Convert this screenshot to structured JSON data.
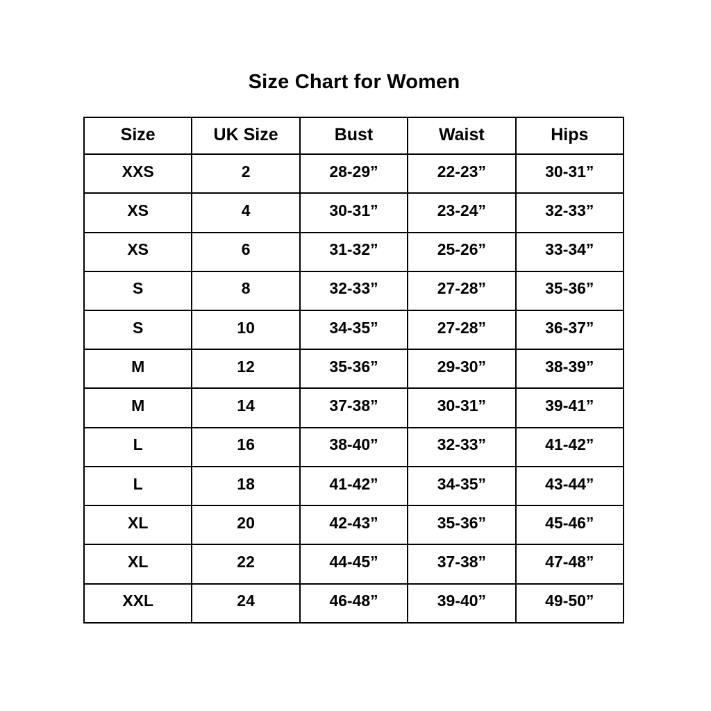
{
  "title": "Size Chart for Women",
  "colors": {
    "background": "#ffffff",
    "border": "#000000",
    "text": "#000000"
  },
  "chart_data": {
    "type": "table",
    "title": "Size Chart for Women",
    "columns": [
      "Size",
      "UK Size",
      "Bust",
      "Waist",
      "Hips"
    ],
    "rows": [
      [
        "XXS",
        "2",
        "28-29”",
        "22-23”",
        "30-31”"
      ],
      [
        "XS",
        "4",
        "30-31”",
        "23-24”",
        "32-33”"
      ],
      [
        "XS",
        "6",
        "31-32”",
        "25-26”",
        "33-34”"
      ],
      [
        "S",
        "8",
        "32-33”",
        "27-28”",
        "35-36”"
      ],
      [
        "S",
        "10",
        "34-35”",
        "27-28”",
        "36-37”"
      ],
      [
        "M",
        "12",
        "35-36”",
        "29-30”",
        "38-39”"
      ],
      [
        "M",
        "14",
        "37-38”",
        "30-31”",
        "39-41”"
      ],
      [
        "L",
        "16",
        "38-40”",
        "32-33”",
        "41-42”"
      ],
      [
        "L",
        "18",
        "41-42”",
        "34-35”",
        "43-44”"
      ],
      [
        "XL",
        "20",
        "42-43”",
        "35-36”",
        "45-46”"
      ],
      [
        "XL",
        "22",
        "44-45”",
        "37-38”",
        "47-48”"
      ],
      [
        "XXL",
        "24",
        "46-48”",
        "39-40”",
        "49-50”"
      ]
    ]
  }
}
